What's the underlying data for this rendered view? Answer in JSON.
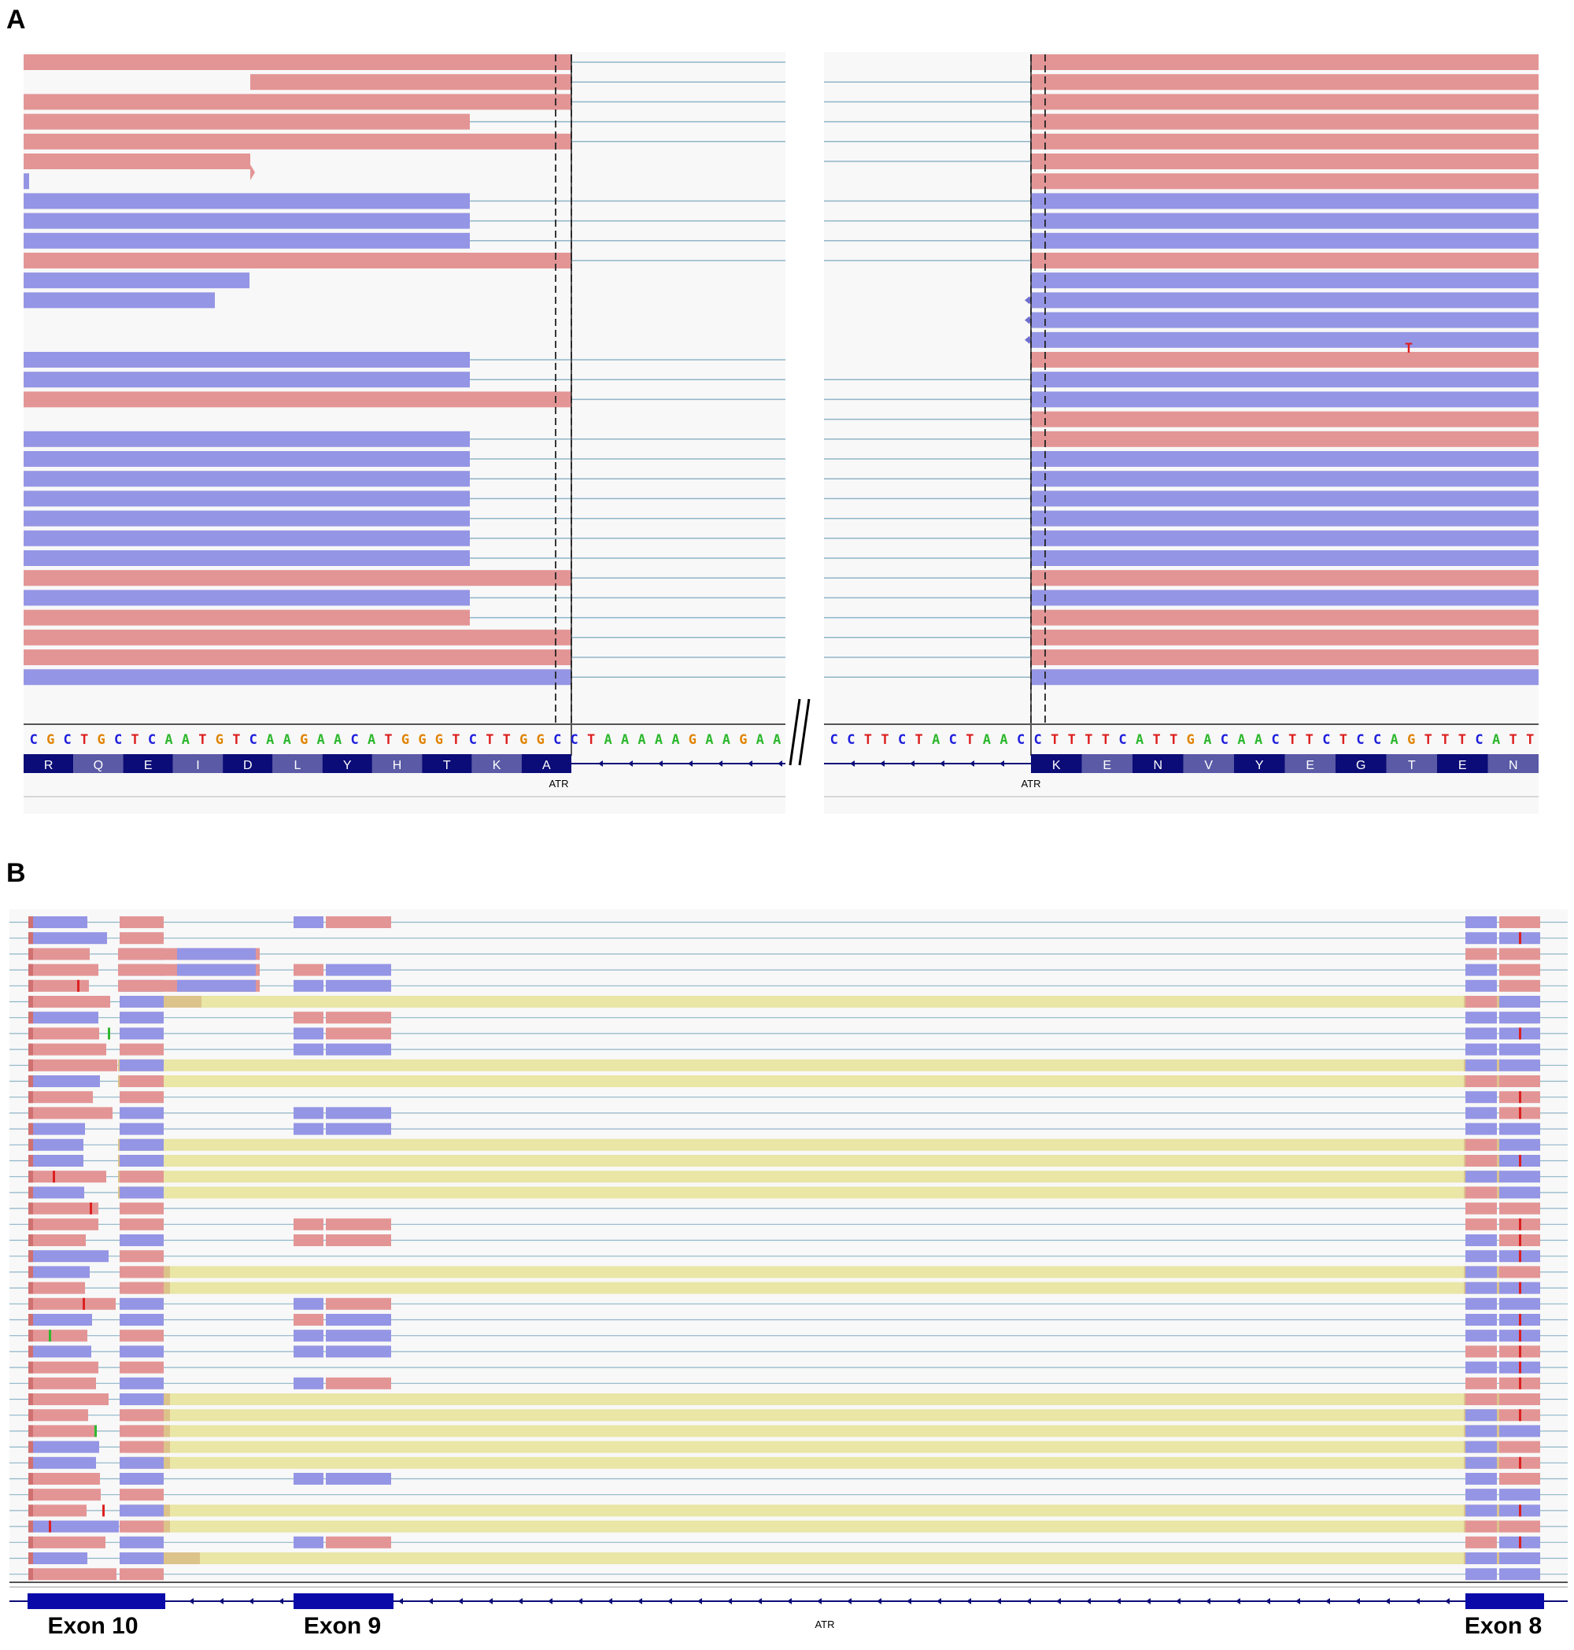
{
  "panels": {
    "a": {
      "label": "A"
    },
    "b": {
      "label": "B"
    }
  },
  "colors": {
    "forward_read": "#e39595",
    "reverse_read": "#9595e5",
    "split_read_highlight": "#e9e6a6",
    "split_read_overlap": "#dcc38a",
    "intron_line": "#8fb5c8",
    "track_background": "#f8f8f8",
    "gene_feature": "#0c0c78",
    "base_A": "#2eb82e",
    "base_C": "#1f1fdd",
    "base_G": "#e08400",
    "base_T": "#dd1f1f"
  },
  "panel_a": {
    "left_reference": "CGCTGCTCAATGTCAAGAACATGGGTCTTGGCCTAAAAAGAAGAA",
    "right_reference": "CCTTCTACTAACCTTTTCATTGACAACTTCTCCAGTTTCATT",
    "left_amino_acids": [
      "R",
      "Q",
      "E",
      "I",
      "D",
      "L",
      "Y",
      "H",
      "T",
      "K",
      "A"
    ],
    "right_amino_acids": [
      "K",
      "E",
      "N",
      "V",
      "Y",
      "E",
      "G",
      "T",
      "E",
      "N"
    ],
    "gene_label": "ATR",
    "mismatch_base": "T"
  },
  "panel_b": {
    "gene_label": "ATR",
    "exons": [
      {
        "label": "Exon 10"
      },
      {
        "label": "Exon 9"
      },
      {
        "label": "Exon 8"
      }
    ]
  }
}
